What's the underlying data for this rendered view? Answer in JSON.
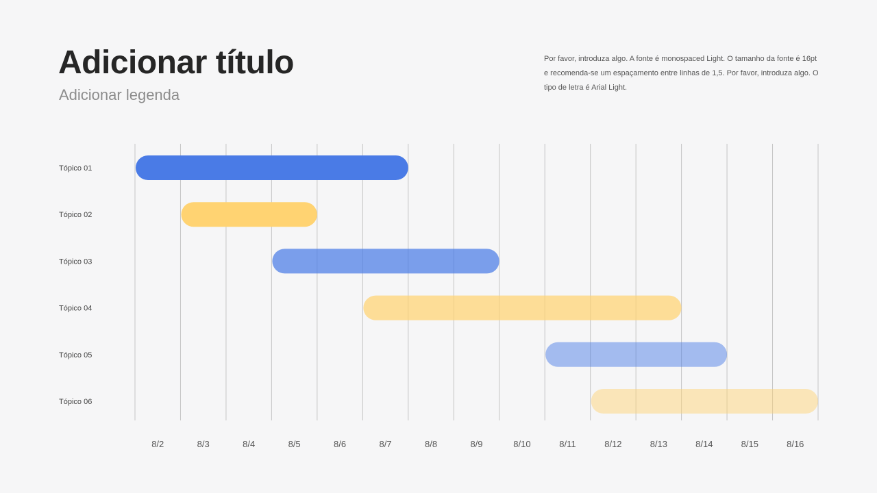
{
  "header": {
    "title": "Adicionar título",
    "subtitle": "Adicionar legenda",
    "description": "Por favor, introduza algo. A fonte é monospaced Light. O tamanho da fonte é 16pt e recomenda-se um espaçamento entre linhas de 1,5. Por favor, introduza algo. O tipo de letra é Arial Light."
  },
  "chart_data": {
    "type": "gantt",
    "title": "",
    "xlabel": "",
    "ylabel": "",
    "columns": [
      "8/2",
      "8/3",
      "8/4",
      "8/5",
      "8/6",
      "8/7",
      "8/8",
      "8/9",
      "8/10",
      "8/11",
      "8/12",
      "8/13",
      "8/14",
      "8/15",
      "8/16"
    ],
    "tasks": [
      {
        "label": "Tópico 01",
        "start": "8/2",
        "end": "8/7",
        "color": "#4a7be6",
        "opacity": 1.0
      },
      {
        "label": "Tópico 02",
        "start": "8/3",
        "end": "8/5",
        "color": "#ffd372",
        "opacity": 1.0
      },
      {
        "label": "Tópico 03",
        "start": "8/5",
        "end": "8/9",
        "color": "#4a7be6",
        "opacity": 0.72
      },
      {
        "label": "Tópico 04",
        "start": "8/7",
        "end": "8/13",
        "color": "#ffd372",
        "opacity": 0.72
      },
      {
        "label": "Tópico 05",
        "start": "8/11",
        "end": "8/14",
        "color": "#4a7be6",
        "opacity": 0.48
      },
      {
        "label": "Tópico 06",
        "start": "8/12",
        "end": "8/16",
        "color": "#ffd372",
        "opacity": 0.48
      }
    ],
    "grid": true,
    "colors": {
      "gridline": "#c4c4c4",
      "label": "#444444",
      "tick": "#555555"
    }
  }
}
